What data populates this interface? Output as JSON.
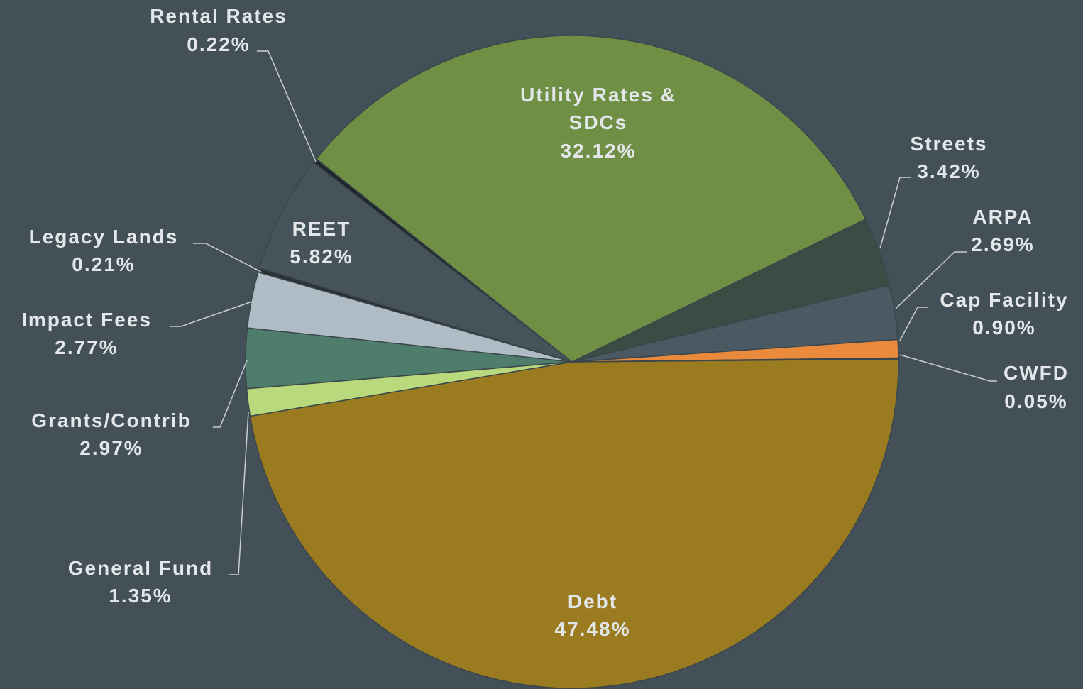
{
  "chart_data": {
    "type": "pie",
    "categories": [
      "Debt",
      "General Fund",
      "Grants/Contrib",
      "Impact Fees",
      "Legacy Lands",
      "REET",
      "Rental Rates",
      "Utility Rates & SDCs",
      "Streets",
      "ARPA",
      "Cap Facility",
      "CWFD"
    ],
    "values": [
      47.48,
      1.35,
      2.97,
      2.77,
      0.21,
      5.82,
      0.22,
      32.12,
      3.42,
      2.69,
      0.9,
      0.05
    ],
    "value_labels": [
      "47.48%",
      "1.35%",
      "2.97%",
      "2.77%",
      "0.21%",
      "5.82%",
      "0.22%",
      "32.12%",
      "3.42%",
      "2.69%",
      "0.90%",
      "0.05%"
    ],
    "colors": [
      "#9a7b20",
      "#b8d97c",
      "#4f7d6c",
      "#b0bcc5",
      "#2a3236",
      "#46535a",
      "#1f2629",
      "#6f8f45",
      "#3a4c44",
      "#4b5962",
      "#ea8a3c",
      "#c9a040"
    ]
  }
}
